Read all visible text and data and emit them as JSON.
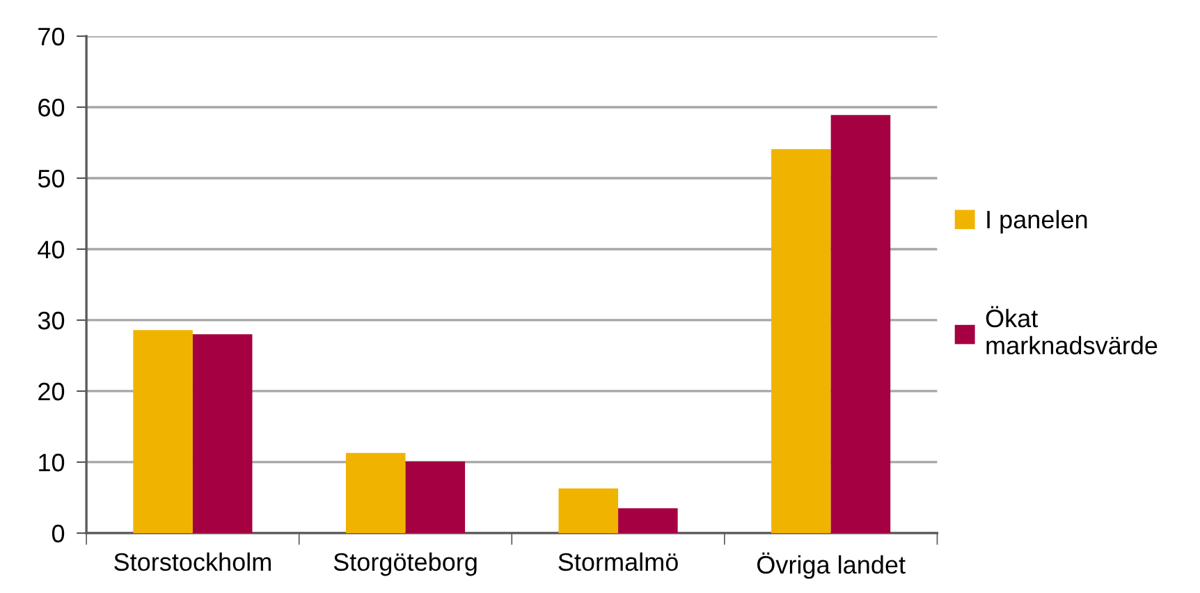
{
  "chart_data": {
    "type": "bar",
    "categories": [
      "Storstockholm",
      "Storgöteborg",
      "Stormalmö",
      "Övriga landet"
    ],
    "series": [
      {
        "name": "I panelen",
        "color": "#f0b400",
        "values": [
          28.6,
          11.3,
          6.3,
          54.1
        ]
      },
      {
        "name": "Ökat\nmarknadsvärde",
        "color": "#a50041",
        "values": [
          28.0,
          10.1,
          3.5,
          58.9
        ]
      }
    ],
    "ylim": [
      0,
      70
    ],
    "yticks": [
      0,
      10,
      20,
      30,
      40,
      50,
      60,
      70
    ],
    "grid": "y",
    "legend": "right"
  }
}
